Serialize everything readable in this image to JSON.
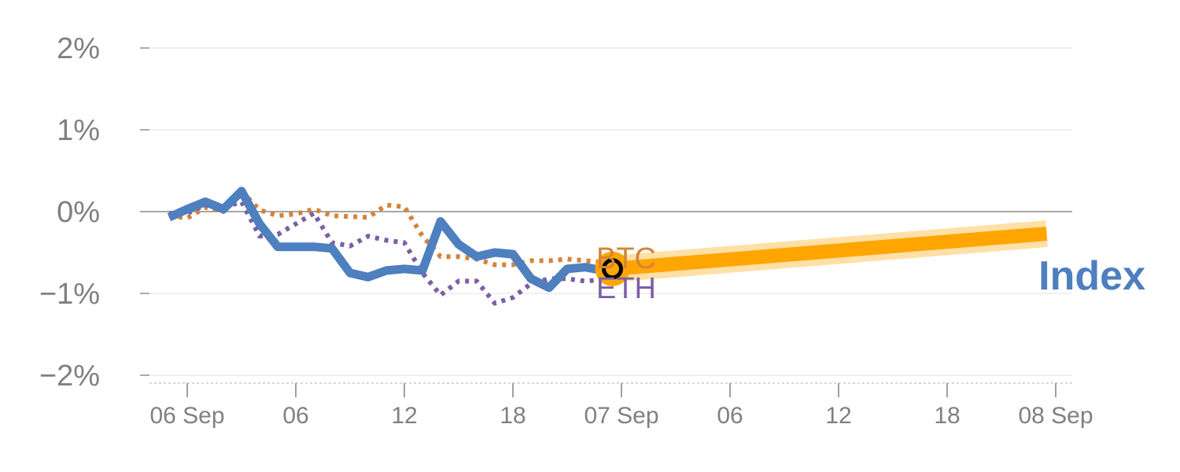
{
  "chart_data": {
    "type": "line",
    "ylim": [
      -2.1,
      2.0
    ],
    "xlim": [
      -2,
      99
    ],
    "grid": true,
    "y_ticks": [
      {
        "value": 2,
        "label": "2%"
      },
      {
        "value": 1,
        "label": "1%"
      },
      {
        "value": 0,
        "label": "0%"
      },
      {
        "value": -1,
        "label": "−1%"
      },
      {
        "value": -2,
        "label": "−2%"
      }
    ],
    "x_ticks": [
      {
        "value": 0,
        "label": "06 Sep"
      },
      {
        "value": 12,
        "label": "06"
      },
      {
        "value": 24,
        "label": "12"
      },
      {
        "value": 36,
        "label": "18"
      },
      {
        "value": 48,
        "label": "07 Sep"
      },
      {
        "value": 60,
        "label": "06"
      },
      {
        "value": 72,
        "label": "12"
      },
      {
        "value": 84,
        "label": "18"
      },
      {
        "value": 96,
        "label": "08 Sep"
      }
    ],
    "series": [
      {
        "name": "BTC",
        "color": "#d4843a",
        "style": "dotted",
        "x": [
          -2,
          0,
          2,
          4,
          6,
          8,
          10,
          12,
          14,
          16,
          18,
          20,
          22,
          24,
          26,
          28,
          30,
          32,
          34,
          36,
          38,
          40,
          42,
          44,
          46,
          47
        ],
        "values": [
          -0.05,
          -0.08,
          0.05,
          0.0,
          0.25,
          0.02,
          -0.05,
          -0.03,
          0.03,
          -0.05,
          -0.06,
          -0.07,
          0.08,
          0.06,
          -0.3,
          -0.55,
          -0.55,
          -0.58,
          -0.65,
          -0.65,
          -0.6,
          -0.6,
          -0.58,
          -0.6,
          -0.62,
          -0.6
        ]
      },
      {
        "name": "ETH",
        "color": "#7b5ea7",
        "style": "dotted",
        "x": [
          -2,
          0,
          2,
          4,
          6,
          8,
          10,
          12,
          14,
          16,
          18,
          20,
          22,
          24,
          26,
          28,
          30,
          32,
          34,
          36,
          38,
          40,
          42,
          44,
          46,
          47
        ],
        "values": [
          -0.02,
          -0.02,
          0.08,
          0.05,
          0.12,
          -0.3,
          -0.28,
          -0.15,
          -0.02,
          -0.38,
          -0.42,
          -0.3,
          -0.35,
          -0.38,
          -0.75,
          -1.02,
          -0.85,
          -0.85,
          -1.12,
          -1.05,
          -0.88,
          -0.82,
          -0.82,
          -0.85,
          -0.83,
          -0.85
        ]
      },
      {
        "name": "Index",
        "color": "#4e7fbf",
        "style": "solid",
        "x": [
          -2,
          0,
          2,
          4,
          6,
          8,
          10,
          12,
          14,
          16,
          18,
          20,
          22,
          24,
          26,
          28,
          30,
          32,
          34,
          36,
          38,
          40,
          42,
          44,
          46,
          47
        ],
        "values": [
          -0.07,
          0.03,
          0.12,
          0.03,
          0.25,
          -0.15,
          -0.43,
          -0.43,
          -0.43,
          -0.45,
          -0.75,
          -0.8,
          -0.72,
          -0.7,
          -0.72,
          -0.12,
          -0.4,
          -0.55,
          -0.5,
          -0.52,
          -0.82,
          -0.93,
          -0.7,
          -0.68,
          -0.72,
          -0.7
        ]
      }
    ],
    "projection": {
      "color": "#ffa500",
      "x": [
        47,
        95
      ],
      "values": [
        -0.7,
        -0.27
      ]
    },
    "marker": {
      "x": 47,
      "value": -0.7
    },
    "labels": {
      "btc": "BTC",
      "eth": "ETH",
      "index": "Index"
    }
  }
}
